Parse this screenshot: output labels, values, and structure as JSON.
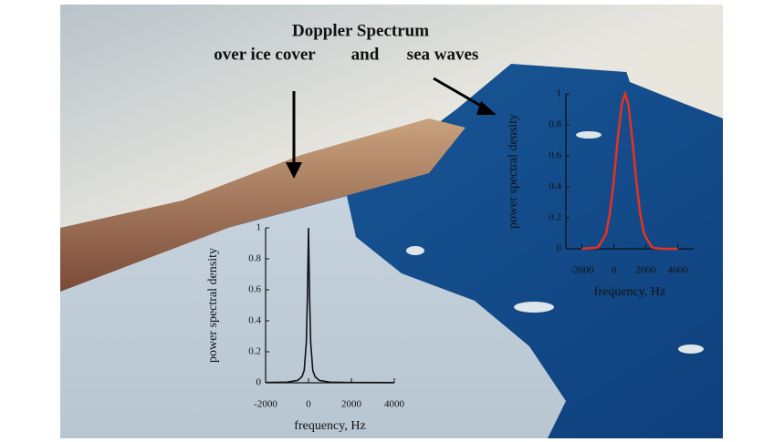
{
  "header": {
    "title": "Doppler Spectrum",
    "labels": [
      "over ice cover",
      "and",
      "sea waves"
    ]
  },
  "chart_data": [
    {
      "type": "line",
      "xlabel": "frequency, Hz",
      "ylabel": "power spectral density",
      "color": "#111111",
      "x": [
        -2000,
        -1000,
        -500,
        -300,
        -200,
        -100,
        -50,
        0,
        50,
        100,
        200,
        300,
        500,
        1000,
        2000,
        4000
      ],
      "values": [
        0.002,
        0.004,
        0.015,
        0.04,
        0.08,
        0.26,
        0.55,
        1,
        0.55,
        0.26,
        0.08,
        0.04,
        0.015,
        0.004,
        0.002,
        0.001
      ],
      "xlim": [
        -2000,
        4000
      ],
      "xticks": [
        -2000,
        0,
        2000,
        4000
      ],
      "ylim": [
        0,
        1
      ],
      "yticks": [
        0,
        0.2,
        0.4,
        0.6,
        0.8,
        1
      ]
    },
    {
      "type": "line",
      "xlabel": "frequency, Hz",
      "ylabel": "power spectral density",
      "color": "#e8321e",
      "x": [
        -2000,
        -1000,
        -500,
        -250,
        0,
        250,
        500,
        700,
        900,
        1150,
        1400,
        1650,
        1900,
        2400,
        3000,
        4000
      ],
      "values": [
        0,
        0.008,
        0.093,
        0.225,
        0.445,
        0.715,
        0.936,
        1,
        0.936,
        0.715,
        0.445,
        0.225,
        0.093,
        0.008,
        0,
        0
      ],
      "xlim": [
        -3000,
        5000
      ],
      "xticks": [
        -2000,
        0,
        2000,
        4000
      ],
      "ylim": [
        0,
        1
      ],
      "yticks": [
        0,
        0.2,
        0.4,
        0.6,
        0.8,
        1
      ]
    }
  ]
}
